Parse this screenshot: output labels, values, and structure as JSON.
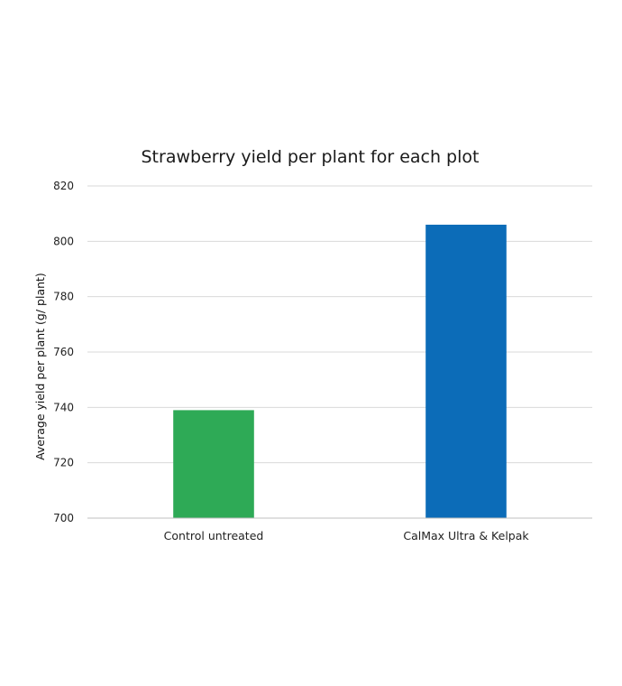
{
  "chart_data": {
    "type": "bar",
    "title": "Strawberry yield per plant for each plot",
    "xlabel": "",
    "ylabel": "Average yield per plant (g/ plant)",
    "categories": [
      "Control untreated",
      "CalMax Ultra & Kelpak"
    ],
    "values": [
      739,
      806
    ],
    "colors": [
      "#2eaa56",
      "#0c6cb8"
    ],
    "ylim": [
      700,
      820
    ],
    "yticks": [
      700,
      720,
      740,
      760,
      780,
      800,
      820
    ],
    "grid": true,
    "legend": "none"
  }
}
